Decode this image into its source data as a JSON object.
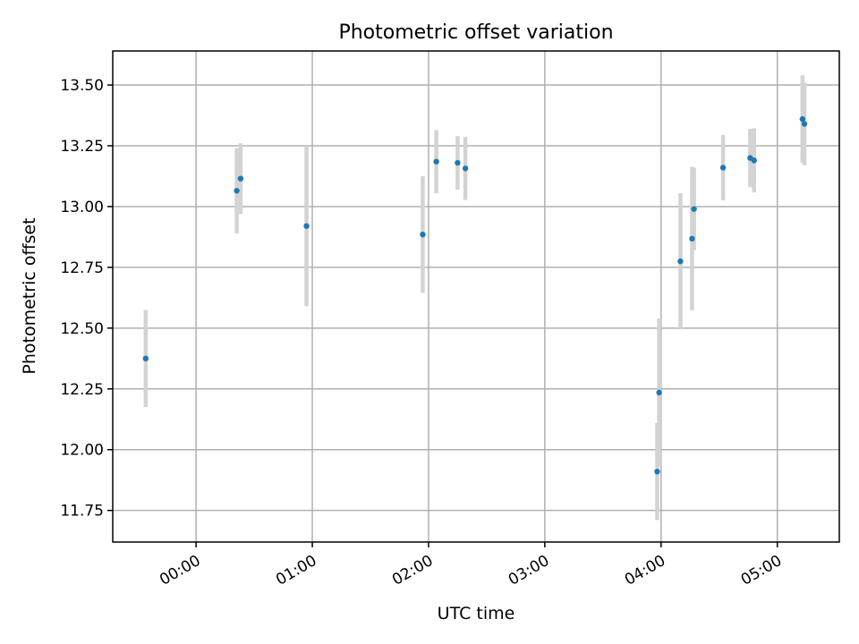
{
  "chart_data": {
    "type": "scatter",
    "title": "Photometric offset variation",
    "xlabel": "UTC time",
    "ylabel": "Photometric offset",
    "xlim": [
      "23:17",
      "05:32"
    ],
    "ylim": [
      11.62,
      13.64
    ],
    "x_ticks": [
      "00:00",
      "01:00",
      "02:00",
      "03:00",
      "04:00",
      "05:00"
    ],
    "y_ticks": [
      "11.75",
      "12.00",
      "12.25",
      "12.50",
      "12.75",
      "13.00",
      "13.25",
      "13.50"
    ],
    "grid": true,
    "marker_color": "#1f77b4",
    "errorbar_color": "#d3d3d3",
    "points": [
      {
        "x": "23:34",
        "y": 12.375,
        "err": 0.2
      },
      {
        "x": "00:21",
        "y": 13.065,
        "err": 0.175
      },
      {
        "x": "00:23",
        "y": 13.115,
        "err": 0.145
      },
      {
        "x": "00:57",
        "y": 12.92,
        "err": 0.33
      },
      {
        "x": "01:57",
        "y": 12.885,
        "err": 0.24
      },
      {
        "x": "02:04",
        "y": 13.185,
        "err": 0.13
      },
      {
        "x": "02:15",
        "y": 13.18,
        "err": 0.11
      },
      {
        "x": "02:19",
        "y": 13.157,
        "err": 0.13
      },
      {
        "x": "03:58",
        "y": 11.91,
        "err": 0.2
      },
      {
        "x": "03:59",
        "y": 12.235,
        "err": 0.305
      },
      {
        "x": "04:10",
        "y": 12.775,
        "err": 0.28
      },
      {
        "x": "04:16",
        "y": 12.868,
        "err": 0.295
      },
      {
        "x": "04:17",
        "y": 12.99,
        "err": 0.17
      },
      {
        "x": "04:32",
        "y": 13.16,
        "err": 0.135
      },
      {
        "x": "04:46",
        "y": 13.2,
        "err": 0.12
      },
      {
        "x": "04:48",
        "y": 13.19,
        "err": 0.132
      },
      {
        "x": "05:13",
        "y": 13.36,
        "err": 0.18
      },
      {
        "x": "05:14",
        "y": 13.34,
        "err": 0.17
      }
    ]
  }
}
